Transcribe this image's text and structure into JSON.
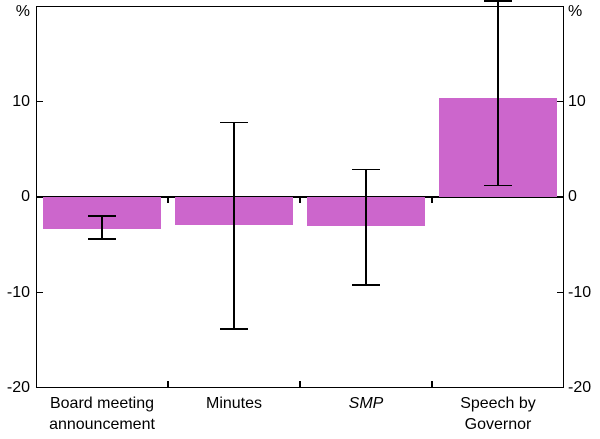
{
  "chart_data": {
    "type": "bar",
    "unit_label": "%",
    "ylim": [
      -20,
      20
    ],
    "yticks": [
      10,
      0,
      -10,
      -20
    ],
    "grid": false,
    "bar_color": "#CC66CC",
    "axis_color": "#000000",
    "categories": [
      "Board meeting announcement",
      "Minutes",
      "SMP",
      "Speech by Governor"
    ],
    "category_label_lines": [
      [
        "Board meeting",
        "announcement"
      ],
      [
        "Minutes"
      ],
      [
        "SMP"
      ],
      [
        "Speech by",
        "Governor"
      ]
    ],
    "italic_flags": [
      false,
      false,
      true,
      false
    ],
    "values": [
      -3.3,
      -2.9,
      -3.0,
      10.4
    ],
    "error_high": [
      -2.0,
      7.8,
      2.9,
      20.5
    ],
    "error_low": [
      -4.4,
      -13.8,
      -9.2,
      1.2
    ]
  }
}
